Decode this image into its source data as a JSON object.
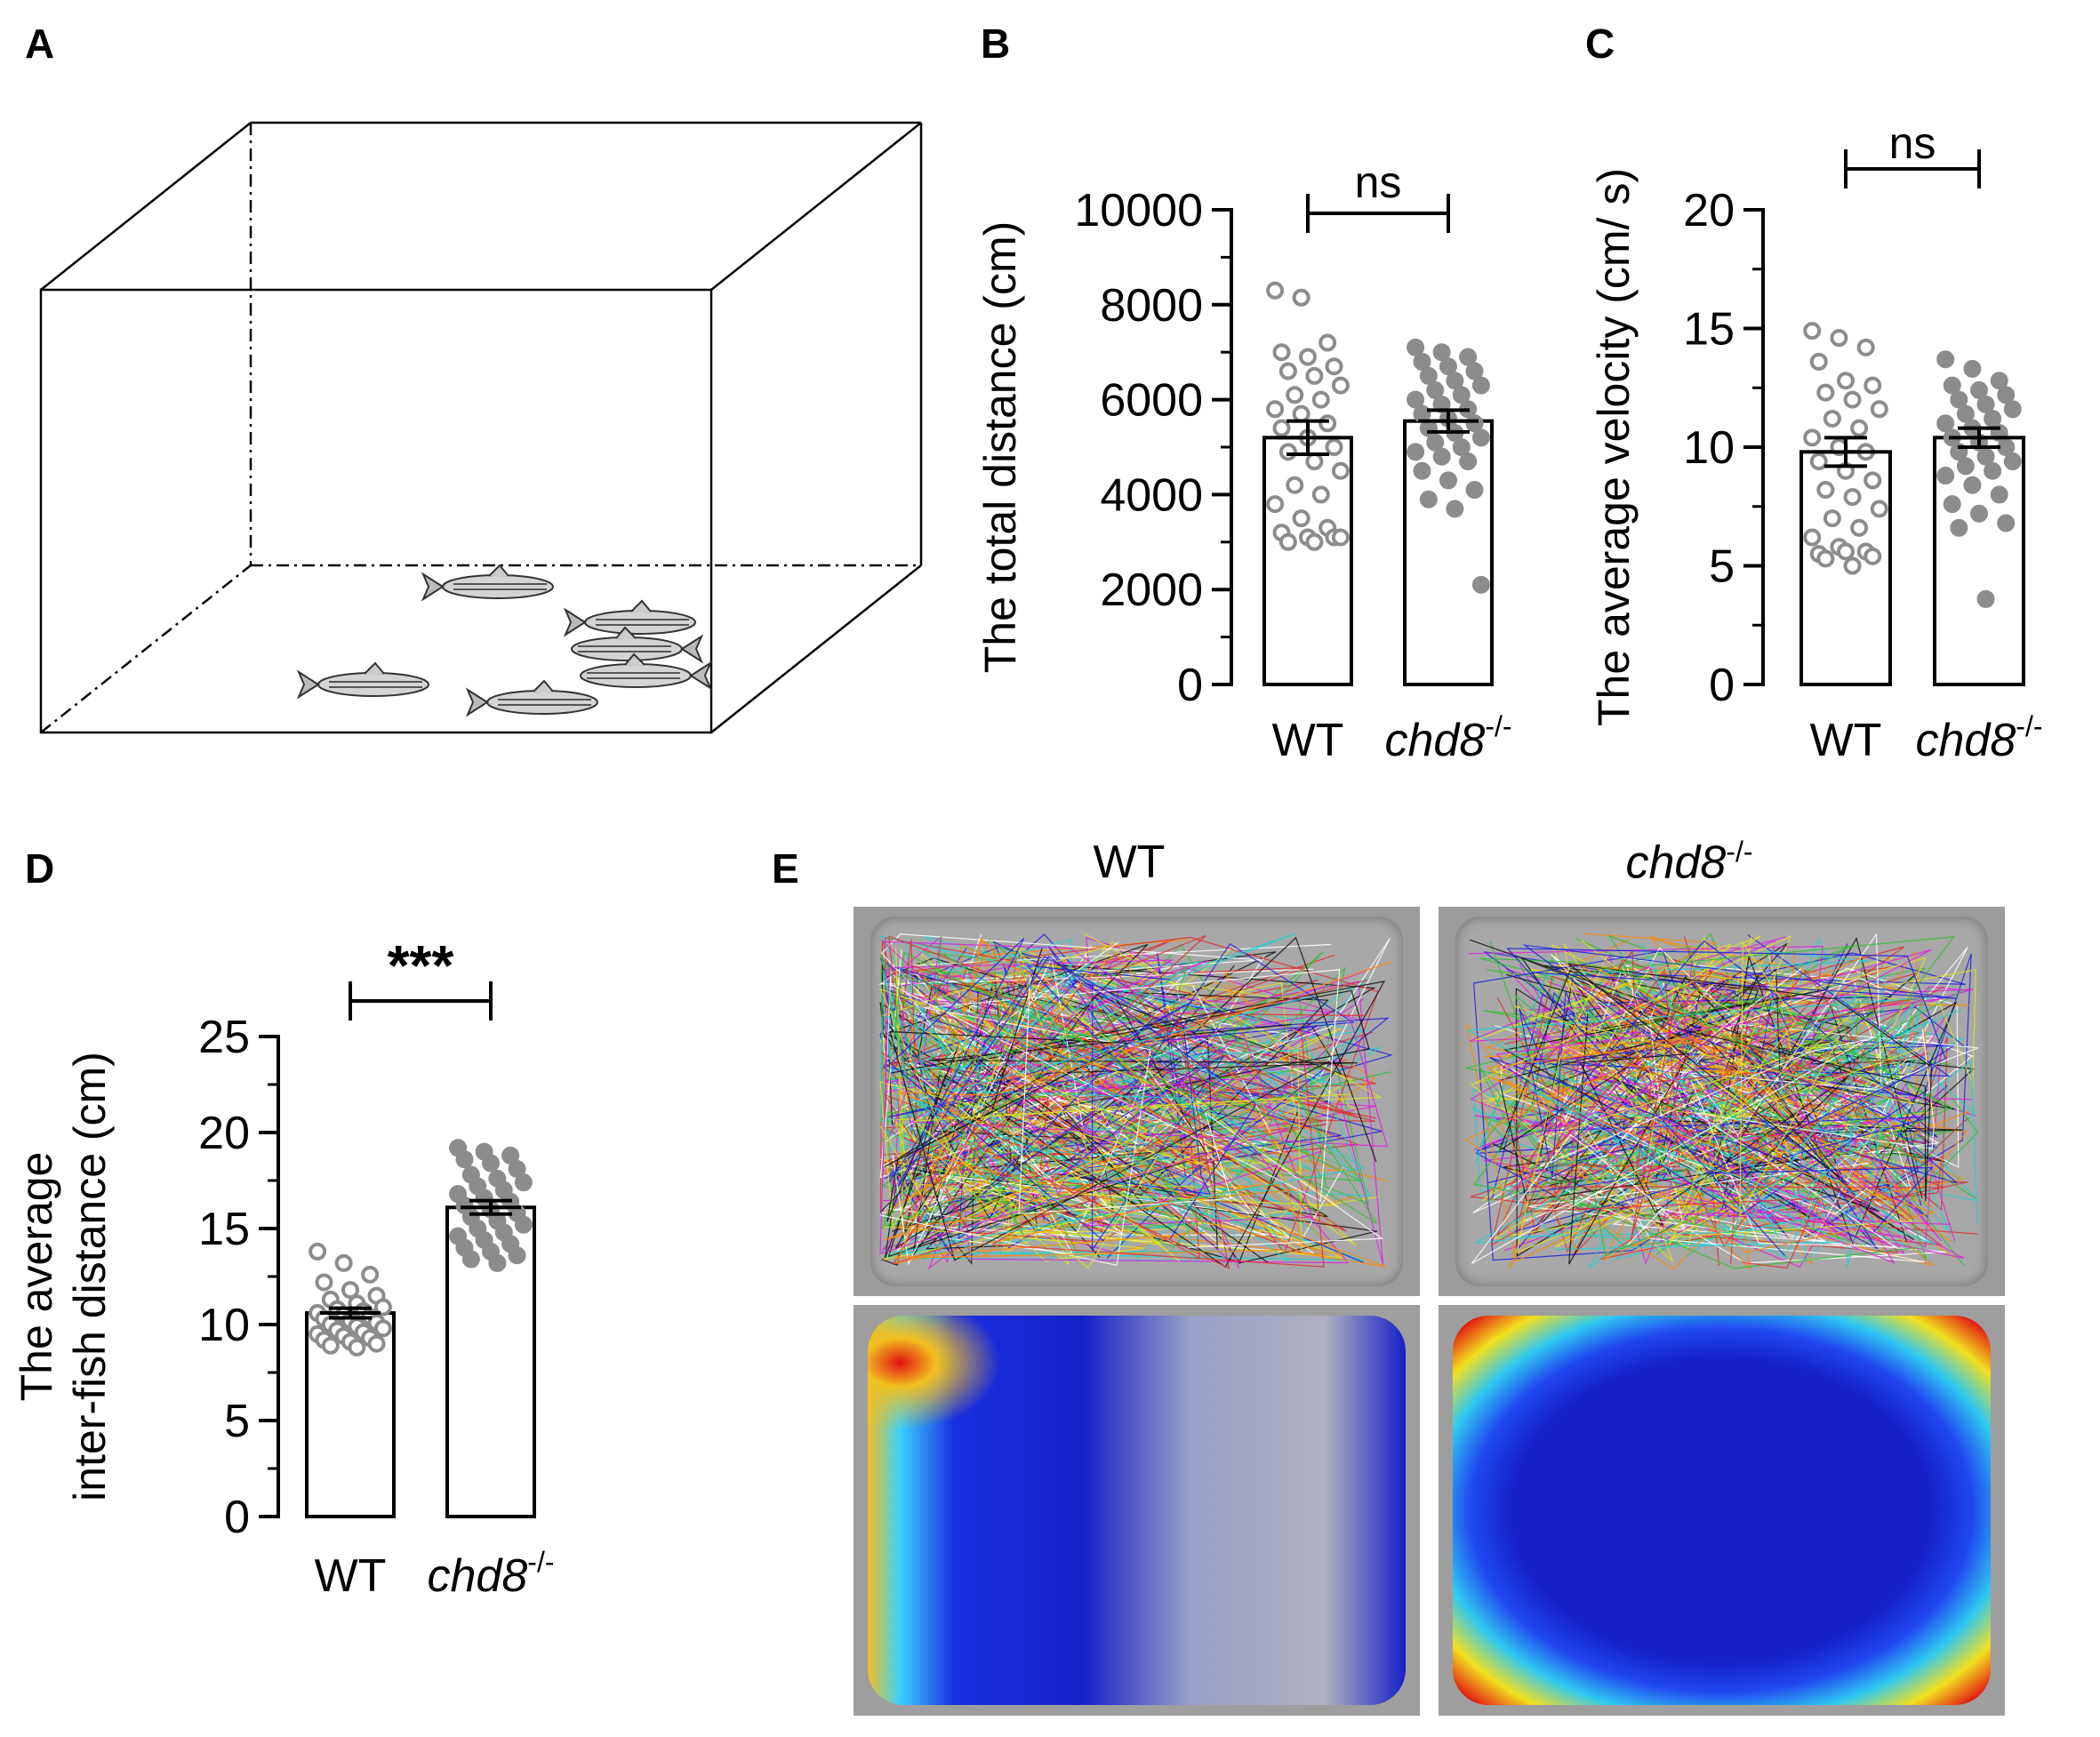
{
  "panel_labels": [
    "A",
    "B",
    "C",
    "D",
    "E"
  ],
  "panel_e": {
    "columns": [
      {
        "label": "WT",
        "italic": false,
        "sup": ""
      },
      {
        "label": "chd8",
        "italic": true,
        "sup": "-/-"
      }
    ],
    "row_types": [
      "trajectory",
      "heatmap"
    ]
  },
  "colors": {
    "wt_marker": "#8c8c8c",
    "chd8_marker": "#8c8c8c",
    "heat_low": "#1520c8",
    "heat_high": "#e01010"
  },
  "chart_data": [
    {
      "type": "bar",
      "panel": "B",
      "categories": [
        "WT",
        "chd8"
      ],
      "category_sup": [
        "",
        "-/-"
      ],
      "category_italic": [
        false,
        true
      ],
      "values": [
        5200,
        5550
      ],
      "sem": [
        350,
        230
      ],
      "ylabel": "The total distance (cm)",
      "ylim": [
        0,
        10000
      ],
      "yticks": [
        0,
        2000,
        4000,
        6000,
        8000,
        10000
      ],
      "significance": "ns",
      "points": [
        [
          8300,
          8150,
          7200,
          7000,
          6900,
          6700,
          6600,
          6500,
          6300,
          6100,
          6000,
          5800,
          5700,
          5500,
          5400,
          5200,
          5000,
          4900,
          4700,
          4500,
          4200,
          4000,
          3800,
          3500,
          3300,
          3200,
          3100,
          3100,
          3000,
          3000,
          3100
        ],
        [
          7100,
          7000,
          6900,
          6800,
          6700,
          6600,
          6500,
          6400,
          6300,
          6200,
          6100,
          6000,
          5900,
          5800,
          5700,
          5600,
          5500,
          5400,
          5300,
          5200,
          5100,
          5000,
          4900,
          4800,
          4700,
          4500,
          4300,
          4100,
          3900,
          3700,
          2100
        ]
      ]
    },
    {
      "type": "bar",
      "panel": "C",
      "categories": [
        "WT",
        "chd8"
      ],
      "category_sup": [
        "",
        "-/-"
      ],
      "category_italic": [
        false,
        true
      ],
      "values": [
        9.8,
        10.4
      ],
      "sem": [
        0.6,
        0.4
      ],
      "ylabel": "The average velocity (cm/ s)",
      "ylim": [
        0,
        20
      ],
      "yticks": [
        0,
        5,
        10,
        15,
        20
      ],
      "significance": "ns",
      "points": [
        [
          14.9,
          14.6,
          14.2,
          13.6,
          12.8,
          12.6,
          12.3,
          12.0,
          11.6,
          11.2,
          10.8,
          10.4,
          10.0,
          9.8,
          9.4,
          9.0,
          8.6,
          8.2,
          7.9,
          7.4,
          7.0,
          6.6,
          6.2,
          5.8,
          5.6,
          5.5,
          5.6,
          5.4,
          5.3,
          5.0
        ],
        [
          13.7,
          13.3,
          12.8,
          12.6,
          12.4,
          12.2,
          12.0,
          11.8,
          11.6,
          11.4,
          11.2,
          11.0,
          10.8,
          10.6,
          10.4,
          10.2,
          10.0,
          9.8,
          9.6,
          9.4,
          9.2,
          9.0,
          8.8,
          8.4,
          8.0,
          7.6,
          7.2,
          6.8,
          6.6,
          3.6
        ]
      ]
    },
    {
      "type": "bar",
      "panel": "D",
      "categories": [
        "WT",
        "chd8"
      ],
      "category_sup": [
        "",
        "-/-"
      ],
      "category_italic": [
        false,
        true
      ],
      "values": [
        10.6,
        16.1
      ],
      "sem": [
        0.25,
        0.35
      ],
      "ylabel": "The average inter-fish distance (cm)",
      "ylabel_lines": [
        "The average",
        "inter-fish distance (cm)"
      ],
      "ylim": [
        0,
        25
      ],
      "yticks": [
        0,
        5,
        10,
        15,
        20,
        25
      ],
      "significance": "***",
      "points": [
        [
          13.8,
          13.2,
          12.6,
          12.2,
          11.8,
          11.5,
          11.3,
          11.1,
          10.9,
          10.8,
          10.7,
          10.6,
          10.5,
          10.4,
          10.3,
          10.2,
          10.1,
          10.0,
          9.9,
          9.8,
          9.7,
          9.6,
          9.5,
          9.4,
          9.3,
          9.2,
          9.1,
          9.0,
          8.9,
          8.8
        ],
        [
          19.2,
          19.0,
          18.8,
          18.6,
          18.4,
          18.1,
          17.8,
          17.6,
          17.4,
          17.2,
          17.0,
          16.8,
          16.6,
          16.4,
          16.2,
          16.0,
          15.8,
          15.6,
          15.4,
          15.2,
          15.0,
          14.8,
          14.6,
          14.4,
          14.2,
          14.0,
          13.8,
          13.6,
          13.4,
          13.2
        ]
      ]
    }
  ]
}
